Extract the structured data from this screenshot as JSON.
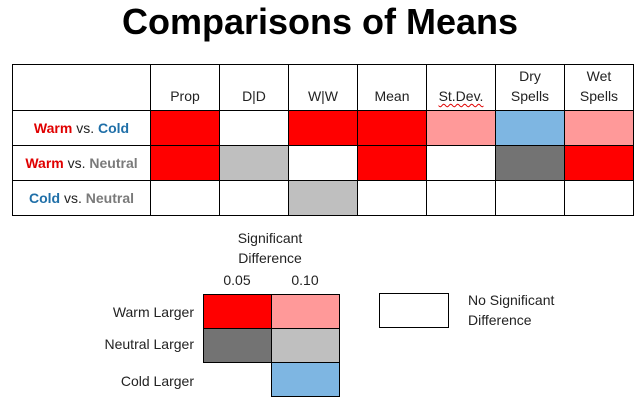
{
  "title": "Comparisons of Means",
  "colors": {
    "red": "#ff0000",
    "pink": "#ff9999",
    "dark_gray": "#737373",
    "light_gray": "#bfbfbf",
    "blue": "#7eb6e2",
    "white": "#ffffff",
    "warm_text": "#e00000",
    "cold_text": "#1f6fa8",
    "neutral_text": "#7a7a7a"
  },
  "table": {
    "columns": [
      "Prop",
      "D|D",
      "W|W",
      "Mean",
      "St.Dev.",
      "Dry\nSpells",
      "Wet\nSpells"
    ],
    "rows": [
      {
        "first": "Warm",
        "vs": "vs.",
        "second": "Cold",
        "cells": [
          "red",
          "white",
          "red",
          "red",
          "pink",
          "blue",
          "pink"
        ]
      },
      {
        "first": "Warm",
        "vs": "vs.",
        "second": "Neutral",
        "cells": [
          "red",
          "light_gray",
          "white",
          "red",
          "white",
          "dark_gray",
          "red"
        ]
      },
      {
        "first": "Cold",
        "vs": "vs.",
        "second": "Neutral",
        "cells": [
          "white",
          "white",
          "light_gray",
          "white",
          "white",
          "white",
          "white"
        ]
      }
    ]
  },
  "legend": {
    "header": "Significant\nDifference",
    "level_005": "0.05",
    "level_010": "0.10",
    "warm_larger": "Warm Larger",
    "neutral_larger": "Neutral Larger",
    "cold_larger": "Cold Larger",
    "no_sig": "No Significant\nDifference"
  }
}
